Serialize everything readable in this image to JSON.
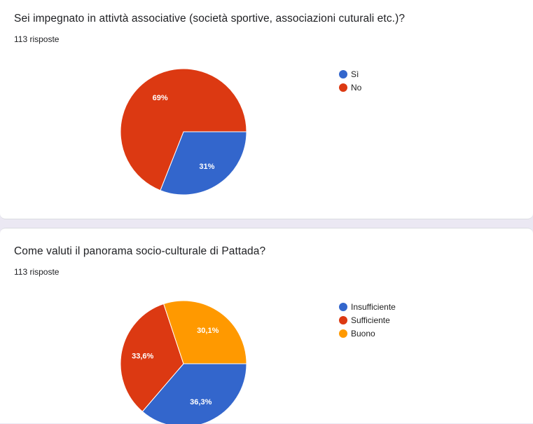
{
  "questions": [
    {
      "title": "Sei impegnato in attivtà associative (società sportive, associazioni cuturali etc.)?",
      "responses": "113 risposte"
    },
    {
      "title": "Come valuti il panorama socio-culturale di Pattada?",
      "responses": "113 risposte"
    }
  ],
  "chart_data": [
    {
      "type": "pie",
      "categories": [
        "Sì",
        "No"
      ],
      "values": [
        31,
        69
      ],
      "labels": [
        "31%",
        "69%"
      ],
      "colors": [
        "#3366cc",
        "#dc3912"
      ],
      "legend_position": "right"
    },
    {
      "type": "pie",
      "categories": [
        "Insufficiente",
        "Sufficiente",
        "Buono"
      ],
      "values": [
        36.3,
        33.6,
        30.1
      ],
      "labels": [
        "36,3%",
        "33,6%",
        "30,1%"
      ],
      "colors": [
        "#3366cc",
        "#dc3912",
        "#ff9900"
      ],
      "legend_position": "right"
    }
  ]
}
